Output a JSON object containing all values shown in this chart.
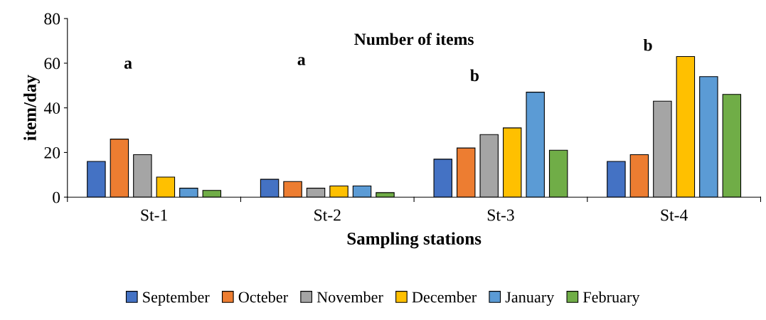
{
  "chart_data": {
    "type": "bar",
    "title": "Number of items",
    "xlabel": "Sampling stations",
    "ylabel": "item/day",
    "categories": [
      "St-1",
      "St-2",
      "St-3",
      "St-4"
    ],
    "series": [
      {
        "name": "September",
        "color": "#4472c4",
        "values": [
          16,
          8,
          17,
          16
        ]
      },
      {
        "name": "Octeber",
        "color": "#ed7d31",
        "values": [
          26,
          7,
          22,
          19
        ]
      },
      {
        "name": "November",
        "color": "#a5a5a5",
        "values": [
          19,
          4,
          28,
          43
        ]
      },
      {
        "name": "December",
        "color": "#ffc000",
        "values": [
          9,
          5,
          31,
          63
        ]
      },
      {
        "name": "January",
        "color": "#5b9bd5",
        "values": [
          4,
          5,
          47,
          54
        ]
      },
      {
        "name": "February",
        "color": "#70ad47",
        "values": [
          3,
          2,
          21,
          46
        ]
      }
    ],
    "ylim": [
      0,
      80
    ],
    "yticks": [
      0,
      20,
      40,
      60,
      80
    ],
    "grid": false,
    "legend": "bottom",
    "annotations": [
      "a",
      "a",
      "b",
      "b"
    ]
  }
}
